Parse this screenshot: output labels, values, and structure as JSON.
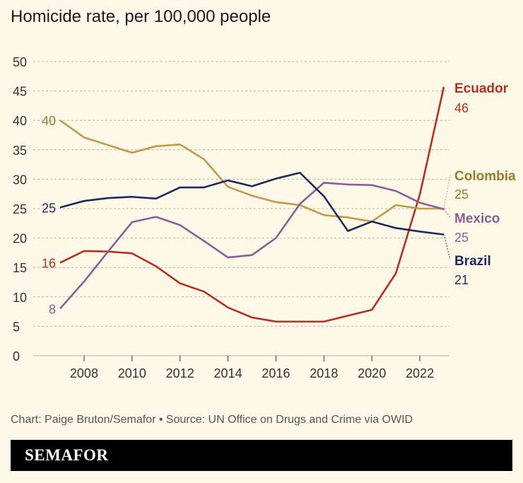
{
  "chart_data": {
    "type": "line",
    "title": "Homicide rate, per 100,000 people",
    "xlabel": "",
    "ylabel": "",
    "xlim": [
      2007,
      2023
    ],
    "ylim": [
      0,
      50
    ],
    "xticks": [
      2008,
      2010,
      2012,
      2014,
      2016,
      2018,
      2020,
      2022
    ],
    "yticks": [
      0,
      5,
      10,
      15,
      20,
      25,
      30,
      35,
      40,
      45,
      50
    ],
    "grid": true,
    "x": [
      2007,
      2008,
      2009,
      2010,
      2011,
      2012,
      2013,
      2014,
      2015,
      2016,
      2017,
      2018,
      2019,
      2020,
      2021,
      2022,
      2023
    ],
    "series": [
      {
        "name": "Ecuador",
        "color": "#b5311e",
        "start_label": "16",
        "end_label": "46",
        "values": [
          15.8,
          17.8,
          17.7,
          17.4,
          15.2,
          12.3,
          10.9,
          8.2,
          6.5,
          5.8,
          5.8,
          5.8,
          6.8,
          7.8,
          14.0,
          27.4,
          45.7
        ]
      },
      {
        "name": "Colombia",
        "color": "#c29a48",
        "label_color": "#9a7a2c",
        "start_label": "40",
        "end_label": "25",
        "values": [
          40.0,
          37.1,
          35.8,
          34.5,
          35.6,
          35.9,
          33.4,
          28.7,
          27.2,
          26.1,
          25.6,
          23.9,
          23.5,
          22.8,
          25.6,
          25.0,
          25.0
        ]
      },
      {
        "name": "Mexico",
        "color": "#8c5e96",
        "start_label": "8",
        "end_label": "25",
        "values": [
          8.0,
          12.6,
          17.7,
          22.7,
          23.6,
          22.2,
          19.5,
          16.7,
          17.1,
          20.0,
          25.8,
          29.4,
          29.1,
          29.0,
          28.0,
          26.0,
          24.9
        ]
      },
      {
        "name": "Brazil",
        "color": "#1f2a5c",
        "start_label": "25",
        "end_label": "21",
        "values": [
          25.2,
          26.3,
          26.8,
          27.0,
          26.7,
          28.6,
          28.6,
          29.8,
          28.8,
          30.1,
          31.1,
          27.1,
          21.2,
          22.8,
          21.7,
          21.1,
          20.6
        ]
      }
    ]
  },
  "footer": {
    "credit": "Chart: Paige Bruton/Semafor • Source: UN Office on Drugs and Crime via OWID",
    "brand": "SEMAFOR"
  }
}
